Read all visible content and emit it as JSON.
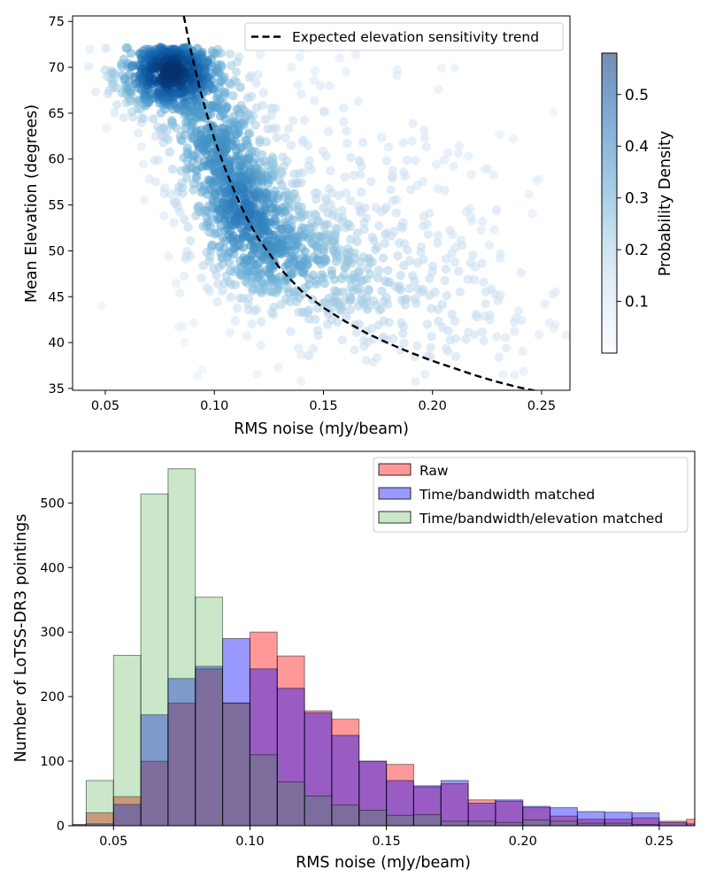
{
  "chart_data": [
    {
      "type": "scatter",
      "xlabel": "RMS noise (mJy/beam)",
      "ylabel": "Mean Elevation (degrees)",
      "xlim": [
        0.035,
        0.263
      ],
      "ylim": [
        34.8,
        75.6
      ],
      "xticks": [
        "0.05",
        "0.10",
        "0.15",
        "0.20",
        "0.25"
      ],
      "xtick_values": [
        0.05,
        0.1,
        0.15,
        0.2,
        0.25
      ],
      "yticks": [
        "35",
        "40",
        "45",
        "50",
        "55",
        "60",
        "65",
        "70",
        "75"
      ],
      "ytick_values": [
        35,
        40,
        45,
        50,
        55,
        60,
        65,
        70,
        75
      ],
      "trend": {
        "label": "Expected elevation sensitivity trend",
        "x": [
          0.086,
          0.088,
          0.09,
          0.093,
          0.096,
          0.1,
          0.105,
          0.11,
          0.115,
          0.12,
          0.13,
          0.14,
          0.15,
          0.16,
          0.17,
          0.18,
          0.19,
          0.2,
          0.21,
          0.22,
          0.23,
          0.24,
          0.25
        ],
        "y": [
          75.6,
          73.2,
          71.0,
          68.0,
          65.3,
          62.2,
          58.9,
          56.0,
          53.5,
          51.4,
          48.1,
          45.6,
          43.8,
          42.3,
          41.0,
          39.9,
          38.9,
          38.0,
          37.2,
          36.4,
          35.7,
          35.1,
          34.6
        ]
      },
      "point_clusters": [
        {
          "x": 0.08,
          "y": 69.5,
          "sx": 0.013,
          "sy": 2.4,
          "n": 640
        },
        {
          "x": 0.1,
          "y": 62.0,
          "sx": 0.012,
          "sy": 3.5,
          "n": 320
        },
        {
          "x": 0.113,
          "y": 55.0,
          "sx": 0.012,
          "sy": 3.2,
          "n": 340
        },
        {
          "x": 0.125,
          "y": 50.0,
          "sx": 0.016,
          "sy": 3.0,
          "n": 260
        },
        {
          "x": 0.15,
          "y": 47.0,
          "sx": 0.02,
          "sy": 3.5,
          "n": 160
        },
        {
          "x": 0.16,
          "y": 56.0,
          "sx": 0.04,
          "sy": 9.0,
          "n": 260
        },
        {
          "x": 0.2,
          "y": 44.0,
          "sx": 0.03,
          "sy": 5.0,
          "n": 160
        }
      ],
      "colorbar": {
        "label": "Probability Density",
        "range": [
          0.0,
          0.58
        ],
        "ticks": [
          "0.1",
          "0.2",
          "0.3",
          "0.4",
          "0.5"
        ],
        "tick_values": [
          0.1,
          0.2,
          0.3,
          0.4,
          0.5
        ],
        "colormap": [
          "#f7fbff",
          "#deebf7",
          "#c6dbef",
          "#9ecae1",
          "#6baed6",
          "#4292c6",
          "#2171b5",
          "#08519c",
          "#08306b"
        ]
      },
      "legend_position": "top-right"
    },
    {
      "type": "bar",
      "subtype": "overlaid-histogram",
      "xlabel": "RMS noise (mJy/beam)",
      "ylabel": "Number of LoTSS-DR3 pointings",
      "xlim": [
        0.035,
        0.263
      ],
      "ylim": [
        0,
        580
      ],
      "xticks": [
        "0.05",
        "0.10",
        "0.15",
        "0.20",
        "0.25"
      ],
      "xtick_values": [
        0.05,
        0.1,
        0.15,
        0.2,
        0.25
      ],
      "yticks": [
        "0",
        "100",
        "200",
        "300",
        "400",
        "500"
      ],
      "ytick_values": [
        0,
        100,
        200,
        300,
        400,
        500
      ],
      "bin_edges": [
        0.03,
        0.04,
        0.05,
        0.06,
        0.07,
        0.08,
        0.09,
        0.1,
        0.11,
        0.12,
        0.13,
        0.14,
        0.15,
        0.16,
        0.17,
        0.18,
        0.19,
        0.2,
        0.21,
        0.22,
        0.23,
        0.24,
        0.25,
        0.26,
        0.27
      ],
      "series": [
        {
          "name": "Raw",
          "color": "#ff0000",
          "alpha": 0.4,
          "values": [
            2,
            20,
            45,
            100,
            190,
            243,
            190,
            300,
            263,
            178,
            165,
            100,
            95,
            60,
            65,
            40,
            38,
            28,
            15,
            10,
            10,
            12,
            7,
            10
          ]
        },
        {
          "name": "Time/bandwidth matched",
          "color": "#0000ff",
          "alpha": 0.4,
          "values": [
            0,
            3,
            33,
            172,
            228,
            247,
            290,
            243,
            213,
            175,
            140,
            100,
            70,
            62,
            70,
            35,
            40,
            30,
            28,
            22,
            21,
            20,
            5,
            3
          ]
        },
        {
          "name": "Time/bandwidth/elevation matched",
          "color": "#2ca02c",
          "alpha": 0.25,
          "values": [
            1,
            70,
            264,
            514,
            553,
            354,
            190,
            110,
            68,
            46,
            32,
            24,
            16,
            17,
            7,
            7,
            5,
            9,
            7,
            4,
            4,
            2,
            0,
            0
          ]
        }
      ],
      "legend_position": "top-right"
    }
  ]
}
